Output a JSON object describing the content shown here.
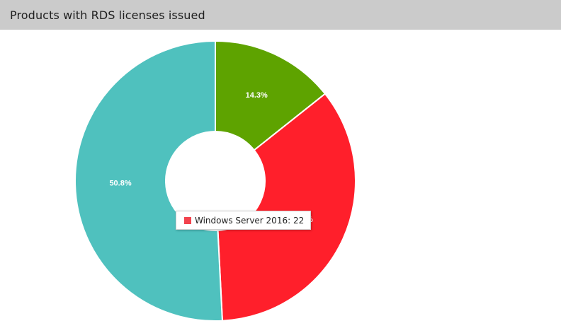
{
  "panel": {
    "title": "Products with RDS licenses issued"
  },
  "chart_data": {
    "type": "pie",
    "donut": true,
    "title": "Products with RDS licenses issued",
    "slices": [
      {
        "label": "14.3%",
        "value": 14.3,
        "color": "#5ea300"
      },
      {
        "label": "34.9%",
        "value": 34.9,
        "color": "#ff1f2b"
      },
      {
        "label": "50.8%",
        "value": 50.8,
        "color": "#4fc1be"
      }
    ],
    "tooltip": {
      "text": "Windows Server 2016: 22",
      "color": "#f2434e"
    }
  }
}
